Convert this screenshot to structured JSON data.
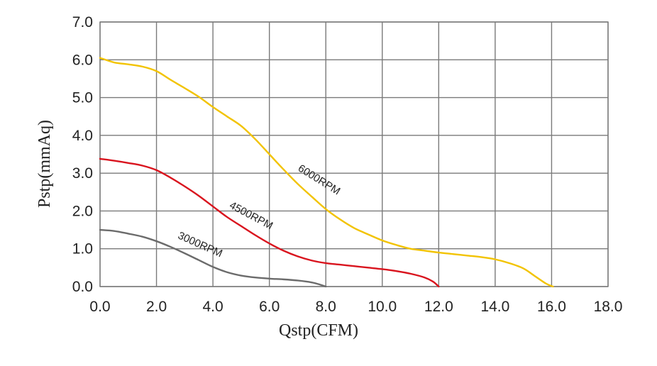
{
  "chart_data": {
    "type": "line",
    "title": "",
    "xlabel": "Qstp(CFM)",
    "ylabel": "Pstp(mmAq)",
    "xlim": [
      0,
      18
    ],
    "ylim": [
      0,
      7
    ],
    "grid": true,
    "x_ticks": [
      "0.0",
      "2.0",
      "4.0",
      "6.0",
      "8.0",
      "10.0",
      "12.0",
      "14.0",
      "16.0",
      "18.0"
    ],
    "y_ticks": [
      "0.0",
      "1.0",
      "2.0",
      "3.0",
      "4.0",
      "5.0",
      "6.0",
      "7.0"
    ],
    "series": [
      {
        "name": "6000RPM",
        "color": "#f2c300",
        "points": [
          [
            0,
            6.05
          ],
          [
            0.5,
            5.93
          ],
          [
            1,
            5.88
          ],
          [
            1.5,
            5.82
          ],
          [
            2,
            5.7
          ],
          [
            2.5,
            5.47
          ],
          [
            3,
            5.25
          ],
          [
            3.5,
            5.02
          ],
          [
            4,
            4.75
          ],
          [
            4.5,
            4.5
          ],
          [
            5,
            4.25
          ],
          [
            5.5,
            3.9
          ],
          [
            6,
            3.5
          ],
          [
            6.5,
            3.1
          ],
          [
            7,
            2.72
          ],
          [
            7.5,
            2.38
          ],
          [
            8,
            2.05
          ],
          [
            8.5,
            1.78
          ],
          [
            9,
            1.55
          ],
          [
            9.5,
            1.38
          ],
          [
            10,
            1.22
          ],
          [
            10.5,
            1.1
          ],
          [
            11,
            1.0
          ],
          [
            11.5,
            0.95
          ],
          [
            12,
            0.9
          ],
          [
            12.5,
            0.86
          ],
          [
            13,
            0.82
          ],
          [
            13.5,
            0.78
          ],
          [
            14,
            0.72
          ],
          [
            14.5,
            0.62
          ],
          [
            15,
            0.48
          ],
          [
            15.4,
            0.28
          ],
          [
            15.8,
            0.08
          ],
          [
            16.05,
            0.0
          ]
        ]
      },
      {
        "name": "4500RPM",
        "color": "#d9141e",
        "points": [
          [
            0,
            3.38
          ],
          [
            0.5,
            3.33
          ],
          [
            1,
            3.27
          ],
          [
            1.5,
            3.2
          ],
          [
            2,
            3.08
          ],
          [
            2.5,
            2.88
          ],
          [
            3,
            2.65
          ],
          [
            3.5,
            2.4
          ],
          [
            4,
            2.12
          ],
          [
            4.5,
            1.84
          ],
          [
            5,
            1.6
          ],
          [
            5.5,
            1.36
          ],
          [
            6,
            1.14
          ],
          [
            6.5,
            0.95
          ],
          [
            7,
            0.8
          ],
          [
            7.5,
            0.69
          ],
          [
            8,
            0.62
          ],
          [
            8.5,
            0.58
          ],
          [
            9,
            0.54
          ],
          [
            9.5,
            0.5
          ],
          [
            10,
            0.46
          ],
          [
            10.5,
            0.41
          ],
          [
            11,
            0.34
          ],
          [
            11.5,
            0.24
          ],
          [
            11.8,
            0.13
          ],
          [
            12,
            0.0
          ]
        ]
      },
      {
        "name": "3000RPM",
        "color": "#6b6b6b",
        "points": [
          [
            0,
            1.5
          ],
          [
            0.5,
            1.47
          ],
          [
            1,
            1.4
          ],
          [
            1.5,
            1.32
          ],
          [
            2,
            1.2
          ],
          [
            2.5,
            1.05
          ],
          [
            3,
            0.88
          ],
          [
            3.5,
            0.7
          ],
          [
            4,
            0.52
          ],
          [
            4.5,
            0.38
          ],
          [
            5,
            0.29
          ],
          [
            5.5,
            0.24
          ],
          [
            6,
            0.21
          ],
          [
            6.5,
            0.19
          ],
          [
            7,
            0.16
          ],
          [
            7.5,
            0.11
          ],
          [
            7.8,
            0.05
          ],
          [
            8,
            0.0
          ]
        ]
      }
    ],
    "annotations": [
      {
        "text": "6000RPM",
        "series": "6000RPM",
        "x": 7.7,
        "y": 2.75,
        "angle_deg": 32
      },
      {
        "text": "4500RPM",
        "series": "4500RPM",
        "x": 5.3,
        "y": 1.8,
        "angle_deg": 28
      },
      {
        "text": "3000RPM",
        "series": "3000RPM",
        "x": 3.5,
        "y": 1.03,
        "angle_deg": 24
      }
    ]
  }
}
